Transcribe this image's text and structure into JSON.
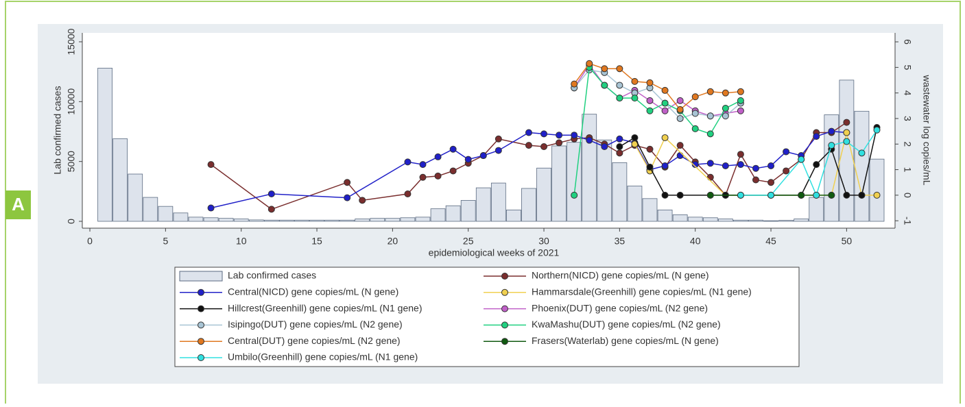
{
  "chart_data": {
    "type": "bar-line",
    "panel_label": "A",
    "xlabel": "epidemiological weeks of 2021",
    "ylabel": "Lab confirmed cases",
    "y2label": "wastewater log copies/mL",
    "xlim": [
      -0.5,
      53.2
    ],
    "xticks": [
      0,
      5,
      10,
      15,
      20,
      25,
      30,
      35,
      40,
      45,
      50
    ],
    "ylim": [
      -572,
      15744
    ],
    "yticks": [
      0,
      5000,
      10000,
      15000
    ],
    "y2lim": [
      -1.29,
      6.35
    ],
    "y2ticks": [
      -1,
      0,
      1,
      2,
      3,
      4,
      5,
      6
    ],
    "grid": false,
    "series": [
      {
        "name": "Lab confirmed cases",
        "type": "bar",
        "axis": "y",
        "color": "#dde3ec",
        "x": [
          1,
          2,
          3,
          4,
          5,
          6,
          7,
          8,
          9,
          10,
          11,
          12,
          13,
          14,
          15,
          16,
          17,
          18,
          19,
          20,
          21,
          22,
          23,
          24,
          25,
          26,
          27,
          28,
          29,
          30,
          31,
          32,
          33,
          34,
          35,
          36,
          37,
          38,
          39,
          40,
          41,
          42,
          43,
          44,
          45,
          46,
          47,
          48,
          49,
          50,
          51,
          52
        ],
        "values": [
          12800,
          6900,
          3950,
          2000,
          1250,
          700,
          350,
          300,
          250,
          200,
          120,
          100,
          100,
          100,
          100,
          100,
          100,
          200,
          250,
          250,
          300,
          350,
          1050,
          1300,
          1750,
          2800,
          3200,
          950,
          2750,
          4450,
          6300,
          6600,
          8950,
          6800,
          4900,
          2950,
          1900,
          950,
          550,
          350,
          300,
          200,
          100,
          100,
          50,
          80,
          200,
          2000,
          8900,
          11800,
          9200,
          5200
        ]
      },
      {
        "name": "Northern(NICD) gene copies/mL (N gene)",
        "type": "line",
        "axis": "y2",
        "color": "#7a2e2e",
        "x": [
          8,
          12,
          17,
          18,
          21,
          22,
          23,
          24,
          25,
          26,
          27,
          29,
          30,
          31,
          32,
          33,
          34,
          35,
          36,
          37,
          38,
          39,
          40,
          41,
          42,
          43,
          44,
          45,
          46,
          47,
          48,
          49,
          50
        ],
        "values": [
          1.2,
          -0.55,
          0.5,
          -0.2,
          0.05,
          0.7,
          0.75,
          0.95,
          1.25,
          1.55,
          2.2,
          1.95,
          1.9,
          2.05,
          2.2,
          2.25,
          2.0,
          1.65,
          1.95,
          1.8,
          1.1,
          1.95,
          1.3,
          0.7,
          0.0,
          1.6,
          0.6,
          0.5,
          0.95,
          1.4,
          2.45,
          2.45,
          2.85
        ]
      },
      {
        "name": "Central(NICD) gene copies/mL (N gene)",
        "type": "line",
        "axis": "y2",
        "color": "#2020c8",
        "x": [
          8,
          12,
          17,
          21,
          22,
          23,
          24,
          25,
          26,
          27,
          29,
          30,
          31,
          32,
          33,
          34,
          35,
          36,
          37,
          38,
          39,
          40,
          41,
          42,
          43,
          44,
          45,
          46,
          47,
          48,
          49,
          50
        ],
        "values": [
          -0.5,
          0.05,
          -0.1,
          1.3,
          1.2,
          1.5,
          1.8,
          1.4,
          1.55,
          1.75,
          2.45,
          2.4,
          2.35,
          2.35,
          2.15,
          1.9,
          2.2,
          2.05,
          1.0,
          1.15,
          1.55,
          1.2,
          1.25,
          1.15,
          1.2,
          1.05,
          1.15,
          1.7,
          1.55,
          2.3,
          2.5,
          2.45
        ]
      },
      {
        "name": "Hammarsdale(Greenhill) gene copies/mL (N1 gene)",
        "type": "line",
        "axis": "y2",
        "color": "#f0d050",
        "x": [
          36,
          37,
          38,
          42,
          43,
          45,
          47,
          49,
          50,
          51,
          52
        ],
        "values": [
          2.0,
          0.95,
          2.25,
          0,
          0,
          0,
          0,
          0,
          2.45,
          0,
          0
        ]
      },
      {
        "name": "Hillcrest(Greenhill) gene copies/mL (N1 gene)",
        "type": "line",
        "axis": "y2",
        "color": "#111111",
        "x": [
          35,
          36,
          37,
          38,
          39,
          41,
          42,
          43,
          45,
          47,
          48,
          49,
          50,
          51,
          52
        ],
        "values": [
          1.9,
          2.25,
          1.1,
          0,
          0,
          0,
          0,
          0,
          0,
          0,
          1.2,
          1.8,
          0,
          0,
          2.65
        ]
      },
      {
        "name": "Phoenix(DUT) gene copies/mL (N2 gene)",
        "type": "line",
        "axis": "y2",
        "color": "#c060c8",
        "x": [
          32,
          33,
          34,
          35,
          36,
          37,
          38,
          39,
          40,
          41,
          42,
          43
        ],
        "values": [
          4.2,
          5.1,
          4.3,
          3.8,
          4.1,
          3.7,
          3.3,
          3.7,
          3.3,
          3.1,
          3.2,
          3.3
        ]
      },
      {
        "name": "Isipingo(DUT) gene copies/mL (N2 gene)",
        "type": "line",
        "axis": "y2",
        "color": "#a8c4d4",
        "x": [
          32,
          33,
          34,
          35,
          36,
          37,
          38,
          39,
          40,
          41,
          42,
          43
        ],
        "values": [
          4.2,
          4.9,
          4.8,
          4.3,
          4.0,
          4.2,
          3.6,
          3.0,
          3.2,
          3.1,
          3.1,
          3.6
        ]
      },
      {
        "name": "KwaMashu(DUT) gene copies/mL (N2 gene)",
        "type": "line",
        "axis": "y2",
        "color": "#20d080",
        "x": [
          32,
          33,
          34,
          35,
          36,
          37,
          38,
          39,
          40,
          41,
          42,
          43
        ],
        "values": [
          0,
          5.0,
          4.3,
          3.8,
          3.8,
          3.3,
          3.6,
          3.3,
          2.6,
          2.4,
          3.4,
          3.7
        ]
      },
      {
        "name": "Central(DUT) gene copies/mL (N2 gene)",
        "type": "line",
        "axis": "y2",
        "color": "#e07820",
        "x": [
          32,
          33,
          34,
          35,
          36,
          37,
          38,
          39,
          40,
          41,
          42,
          43
        ],
        "values": [
          4.35,
          5.15,
          4.95,
          4.95,
          4.45,
          4.4,
          4.1,
          3.35,
          3.85,
          4.05,
          4.0,
          4.05
        ]
      },
      {
        "name": "Frasers(Waterlab) gene copies/mL (N gene)",
        "type": "line",
        "axis": "y2",
        "color": "#105a10",
        "x": [
          41,
          47,
          48,
          49
        ],
        "values": [
          0,
          0,
          0,
          0
        ]
      },
      {
        "name": "Umbilo(Greenhill) gene copies/mL (N1 gene)",
        "type": "line",
        "axis": "y2",
        "color": "#30e0e0",
        "x": [
          43,
          45,
          47,
          48,
          49,
          50,
          51,
          52
        ],
        "values": [
          0,
          0,
          1.4,
          0,
          1.95,
          2.1,
          1.65,
          2.55
        ]
      }
    ]
  }
}
